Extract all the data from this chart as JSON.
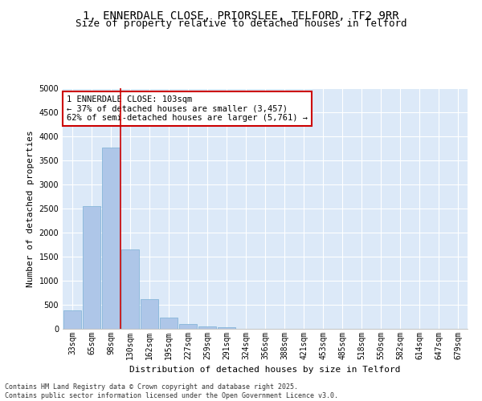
{
  "title_line1": "1, ENNERDALE CLOSE, PRIORSLEE, TELFORD, TF2 9RR",
  "title_line2": "Size of property relative to detached houses in Telford",
  "xlabel": "Distribution of detached houses by size in Telford",
  "ylabel": "Number of detached properties",
  "categories": [
    "33sqm",
    "65sqm",
    "98sqm",
    "130sqm",
    "162sqm",
    "195sqm",
    "227sqm",
    "259sqm",
    "291sqm",
    "324sqm",
    "356sqm",
    "388sqm",
    "421sqm",
    "453sqm",
    "485sqm",
    "518sqm",
    "550sqm",
    "582sqm",
    "614sqm",
    "647sqm",
    "679sqm"
  ],
  "values": [
    380,
    2550,
    3760,
    1650,
    620,
    230,
    95,
    45,
    30,
    0,
    0,
    0,
    0,
    0,
    0,
    0,
    0,
    0,
    0,
    0,
    0
  ],
  "bar_color": "#aec6e8",
  "bar_edge_color": "#7aafd4",
  "vline_x": 2.5,
  "vline_color": "#cc0000",
  "annotation_text": "1 ENNERDALE CLOSE: 103sqm\n← 37% of detached houses are smaller (3,457)\n62% of semi-detached houses are larger (5,761) →",
  "annotation_box_color": "#cc0000",
  "ylim": [
    0,
    5000
  ],
  "yticks": [
    0,
    500,
    1000,
    1500,
    2000,
    2500,
    3000,
    3500,
    4000,
    4500,
    5000
  ],
  "background_color": "#dce9f8",
  "grid_color": "#ffffff",
  "fig_background": "#ffffff",
  "footer_line1": "Contains HM Land Registry data © Crown copyright and database right 2025.",
  "footer_line2": "Contains public sector information licensed under the Open Government Licence v3.0.",
  "title_fontsize": 10,
  "subtitle_fontsize": 9,
  "axis_label_fontsize": 8,
  "tick_fontsize": 7,
  "annotation_fontsize": 7.5,
  "footer_fontsize": 6
}
